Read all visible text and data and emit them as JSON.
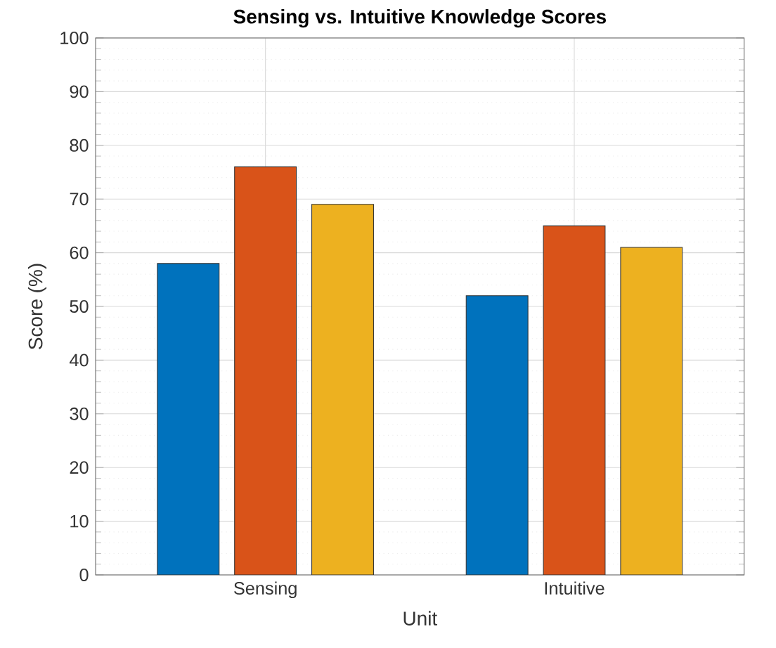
{
  "chart_data": {
    "type": "bar",
    "title": "Sensing vs. Intuitive Knowledge Scores",
    "xlabel": "Unit",
    "ylabel": "Score (%)",
    "categories": [
      "Sensing",
      "Intuitive"
    ],
    "series": [
      {
        "color": "#0072bd",
        "values": [
          58,
          52
        ]
      },
      {
        "color": "#d95319",
        "values": [
          76,
          65
        ]
      },
      {
        "color": "#edb120",
        "values": [
          69,
          61
        ]
      }
    ],
    "ylim": [
      0,
      100
    ],
    "yticks": [
      0,
      10,
      20,
      30,
      40,
      50,
      60,
      70,
      80,
      90,
      100
    ],
    "grid": true
  }
}
